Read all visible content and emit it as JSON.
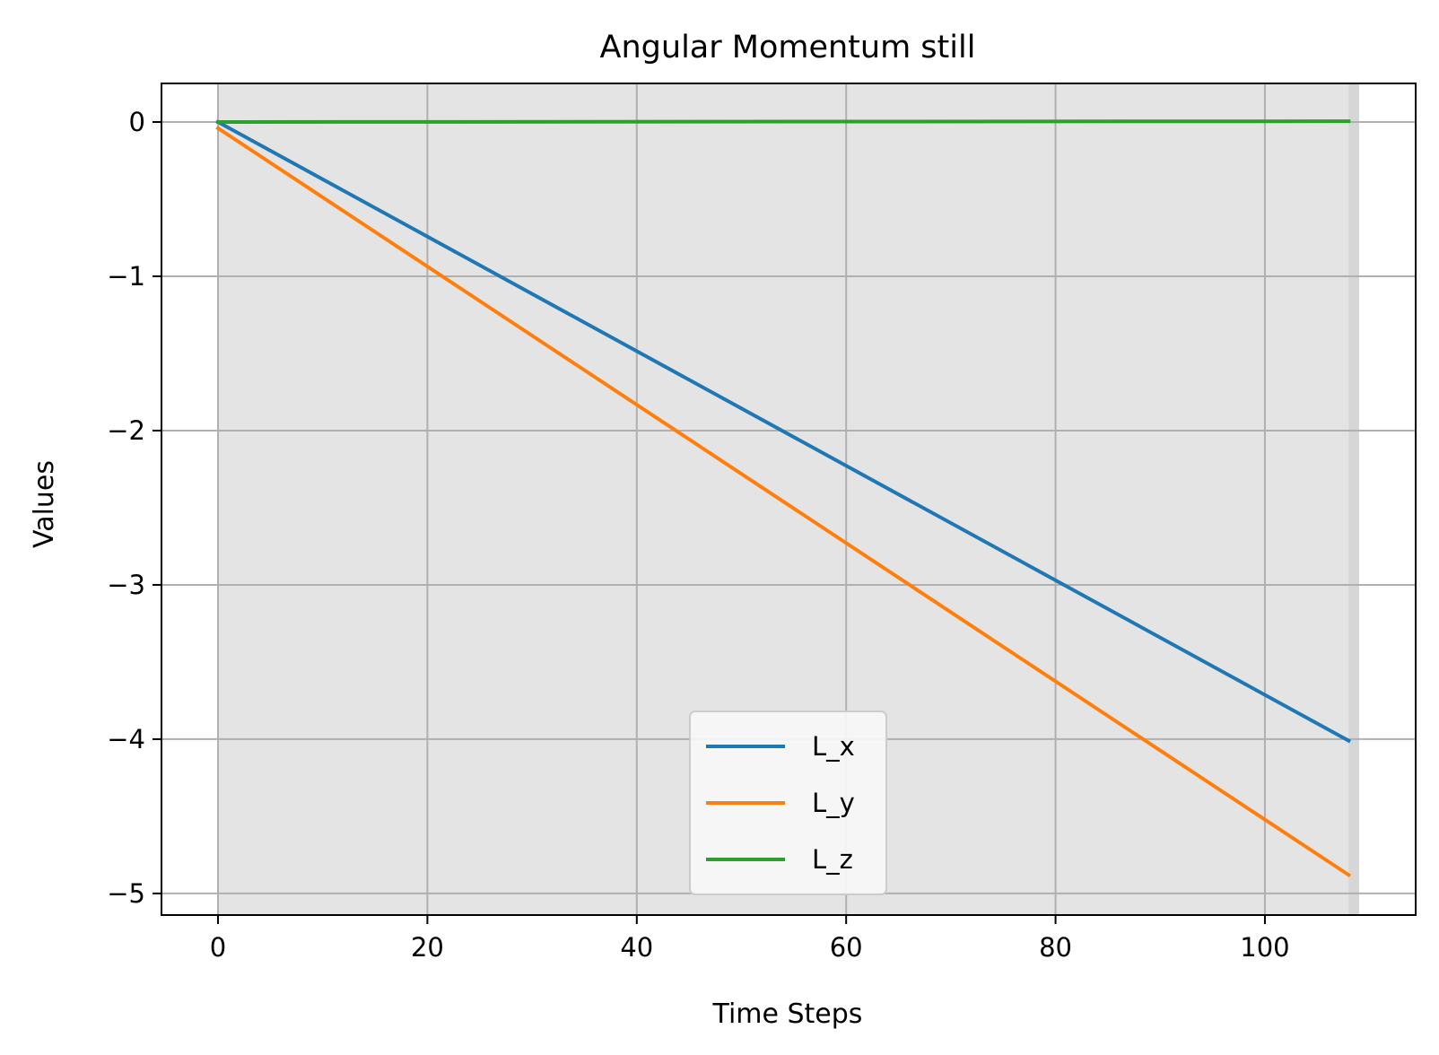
{
  "chart_data": {
    "type": "line",
    "title": "Angular Momentum still",
    "xlabel": "Time Steps",
    "ylabel": "Values",
    "xlim": [
      -5.4,
      114.4
    ],
    "ylim": [
      -5.14,
      0.25
    ],
    "xticks": [
      0,
      20,
      40,
      60,
      80,
      100
    ],
    "xtick_labels": [
      "0",
      "20",
      "40",
      "60",
      "80",
      "100"
    ],
    "yticks": [
      0,
      -1,
      -2,
      -3,
      -4,
      -5
    ],
    "ytick_labels": [
      "0",
      "−1",
      "−2",
      "−3",
      "−4",
      "−5"
    ],
    "grid": true,
    "shaded_region": {
      "x_start": 0,
      "x_end": 109,
      "color": "#e4e4e4"
    },
    "final_marker_x": 108,
    "legend_position": "lower-center",
    "series": [
      {
        "name": "L_x",
        "color": "#1f77b4",
        "x_start": 0,
        "x_end": 108,
        "y_start": 0.0,
        "y_end": -4.01
      },
      {
        "name": "L_y",
        "color": "#ff7f0e",
        "x_start": 0,
        "x_end": 108,
        "y_start": -0.04,
        "y_end": -4.88
      },
      {
        "name": "L_z",
        "color": "#2ca02c",
        "x_start": 0,
        "x_end": 108,
        "y_start": 0.0,
        "y_end": 0.005
      }
    ]
  }
}
